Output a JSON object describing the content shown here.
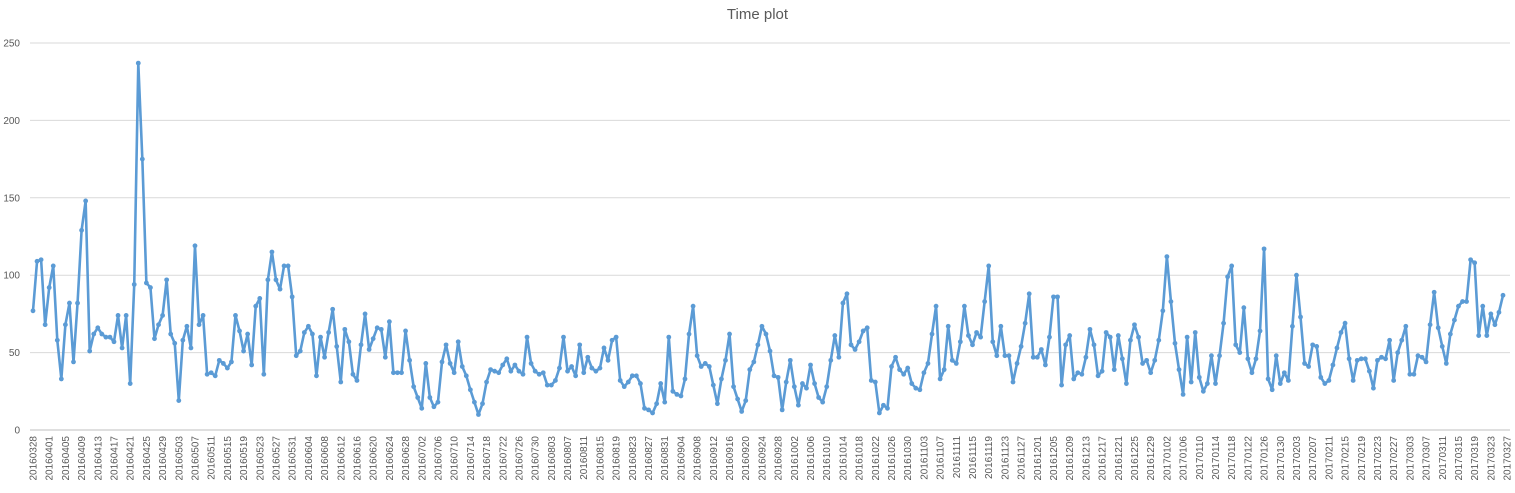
{
  "chart_data": {
    "type": "line",
    "title": "Time plot",
    "xlabel": "",
    "ylabel": "",
    "ylim": [
      0,
      250
    ],
    "yticks": [
      0,
      50,
      100,
      150,
      200,
      250
    ],
    "grid": "horizontal",
    "legend": "none",
    "line_color": "#5B9BD5",
    "x_start": "20160328",
    "x_end": "20170327",
    "x_tick_labels": [
      "20160328",
      "20160401",
      "20160405",
      "20160409",
      "20160413",
      "20160417",
      "20160421",
      "20160425",
      "20160429",
      "20160503",
      "20160507",
      "20160511",
      "20160515",
      "20160519",
      "20160523",
      "20160527",
      "20160531",
      "20160604",
      "20160608",
      "20160612",
      "20160616",
      "20160620",
      "20160624",
      "20160628",
      "20160702",
      "20160706",
      "20160710",
      "20160714",
      "20160718",
      "20160722",
      "20160726",
      "20160730",
      "20160803",
      "20160807",
      "20160811",
      "20160815",
      "20160819",
      "20160823",
      "20160827",
      "20160831",
      "20160904",
      "20160908",
      "20160912",
      "20160916",
      "20160920",
      "20160924",
      "20160928",
      "20161002",
      "20161006",
      "20161010",
      "20161014",
      "20161018",
      "20161022",
      "20161026",
      "20161030",
      "20161103",
      "20161107",
      "20161111",
      "20161115",
      "20161119",
      "20161123",
      "20161127",
      "20161201",
      "20161205",
      "20161209",
      "20161213",
      "20161217",
      "20161221",
      "20161225",
      "20161229",
      "20170102",
      "20170106",
      "20170110",
      "20170114",
      "20170118",
      "20170122",
      "20170126",
      "20170130",
      "20170203",
      "20170207",
      "20170211",
      "20170215",
      "20170219",
      "20170223",
      "20170227",
      "20170303",
      "20170307",
      "20170311",
      "20170315",
      "20170319",
      "20170323",
      "20170327"
    ],
    "values": [
      77,
      109,
      110,
      68,
      92,
      106,
      58,
      33,
      68,
      82,
      44,
      82,
      129,
      148,
      51,
      62,
      66,
      62,
      60,
      60,
      57,
      74,
      53,
      74,
      30,
      94,
      237,
      175,
      95,
      92,
      59,
      68,
      74,
      97,
      62,
      56,
      19,
      58,
      67,
      53,
      119,
      68,
      74,
      36,
      37,
      35,
      45,
      43,
      40,
      44,
      74,
      64,
      51,
      62,
      42,
      80,
      85,
      36,
      97,
      115,
      97,
      91,
      106,
      106,
      86,
      48,
      51,
      63,
      67,
      62,
      35,
      60,
      47,
      63,
      78,
      54,
      31,
      65,
      57,
      36,
      32,
      55,
      75,
      52,
      59,
      66,
      65,
      47,
      70,
      37,
      37,
      37,
      64,
      45,
      28,
      21,
      14,
      43,
      21,
      15,
      18,
      44,
      55,
      43,
      37,
      57,
      41,
      35,
      26,
      18,
      10,
      17,
      31,
      39,
      38,
      37,
      42,
      46,
      38,
      42,
      38,
      36,
      60,
      43,
      38,
      36,
      37,
      29,
      29,
      32,
      40,
      60,
      38,
      41,
      35,
      55,
      37,
      47,
      40,
      38,
      40,
      53,
      45,
      58,
      60,
      32,
      28,
      31,
      35,
      35,
      30,
      14,
      13,
      11,
      17,
      30,
      18,
      60,
      25,
      23,
      22,
      33,
      62,
      80,
      48,
      41,
      43,
      41,
      29,
      17,
      33,
      45,
      62,
      28,
      20,
      12,
      19,
      39,
      44,
      55,
      67,
      62,
      51,
      35,
      34,
      13,
      31,
      45,
      28,
      16,
      30,
      27,
      42,
      30,
      21,
      18,
      28,
      45,
      61,
      47,
      82,
      88,
      55,
      52,
      57,
      64,
      66,
      32,
      31,
      11,
      16,
      14,
      41,
      47,
      39,
      36,
      40,
      30,
      27,
      26,
      37,
      43,
      62,
      80,
      33,
      39,
      67,
      45,
      43,
      57,
      80,
      61,
      55,
      63,
      60,
      83,
      106,
      57,
      48,
      67,
      48,
      48,
      31,
      43,
      54,
      69,
      88,
      47,
      47,
      52,
      42,
      60,
      86,
      86,
      29,
      55,
      61,
      33,
      37,
      36,
      47,
      65,
      55,
      35,
      38,
      63,
      60,
      39,
      61,
      46,
      30,
      58,
      68,
      60,
      43,
      45,
      37,
      45,
      58,
      77,
      112,
      83,
      56,
      39,
      23,
      60,
      31,
      63,
      34,
      25,
      30,
      48,
      30,
      48,
      69,
      99,
      106,
      55,
      50,
      79,
      46,
      37,
      46,
      64,
      117,
      33,
      26,
      48,
      30,
      37,
      32,
      67,
      100,
      73,
      43,
      41,
      55,
      54,
      34,
      30,
      32,
      42,
      53,
      63,
      69,
      46,
      32,
      45,
      46,
      46,
      38,
      27,
      45,
      47,
      46,
      58,
      32,
      50,
      58,
      67,
      36,
      36,
      48,
      47,
      44,
      68,
      89,
      66,
      54,
      43,
      62,
      71,
      80,
      83,
      83,
      110,
      108,
      61,
      80,
      61,
      75,
      68,
      76,
      87
    ]
  }
}
